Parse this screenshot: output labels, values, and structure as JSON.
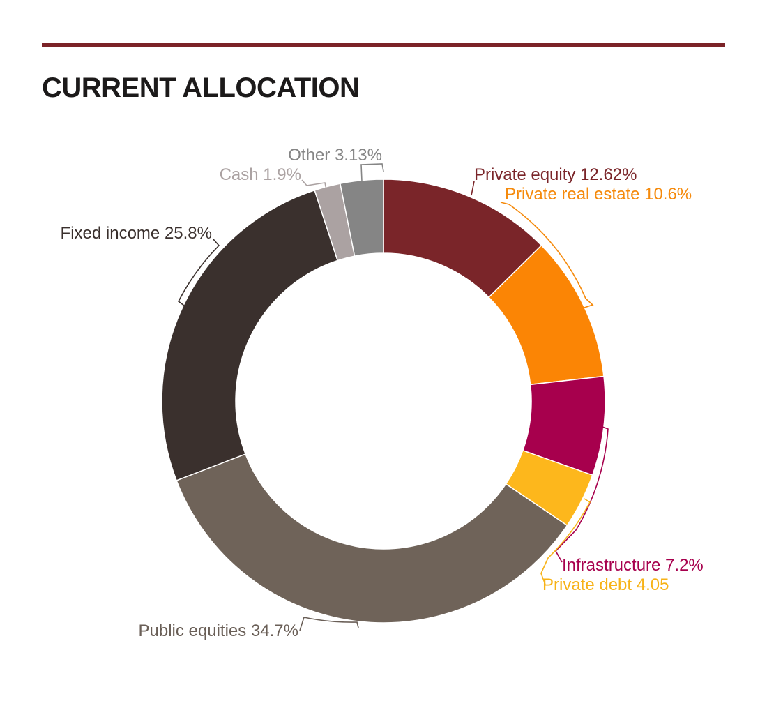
{
  "page": {
    "title": "CURRENT ALLOCATION"
  },
  "colors": {
    "rule": "#7b2327",
    "title": "#1c1a1a"
  },
  "chart_data": {
    "type": "pie",
    "variant": "donut",
    "title": "CURRENT ALLOCATION",
    "start": "12 o'clock, clockwise",
    "slices": [
      {
        "name": "Private equity",
        "label": "Private equity 12.62%",
        "value": 12.62,
        "color": "#7a2529",
        "label_color": "#7a2529"
      },
      {
        "name": "Private real estate",
        "label": "Private real estate 10.6%",
        "value": 10.6,
        "color": "#fb8505",
        "label_color": "#f58a0c"
      },
      {
        "name": "Infrastructure",
        "label": "Infrastructure 7.2%",
        "value": 7.2,
        "color": "#a7004d",
        "label_color": "#a7004d"
      },
      {
        "name": "Private debt",
        "label": "Private debt 4.05",
        "value": 4.05,
        "color": "#fdb71c",
        "label_color": "#f7b216"
      },
      {
        "name": "Public equities",
        "label": "Public equities 34.7%",
        "value": 34.7,
        "color": "#6f6359",
        "label_color": "#6a5f57"
      },
      {
        "name": "Fixed income",
        "label": "Fixed income 25.8%",
        "value": 25.8,
        "color": "#3a302d",
        "label_color": "#3a302d"
      },
      {
        "name": "Cash",
        "label": "Cash 1.9%",
        "value": 1.9,
        "color": "#aba2a2",
        "label_color": "#aba2a2"
      },
      {
        "name": "Other",
        "label": "Other 3.13%",
        "value": 3.13,
        "color": "#858585",
        "label_color": "#858585"
      }
    ]
  }
}
